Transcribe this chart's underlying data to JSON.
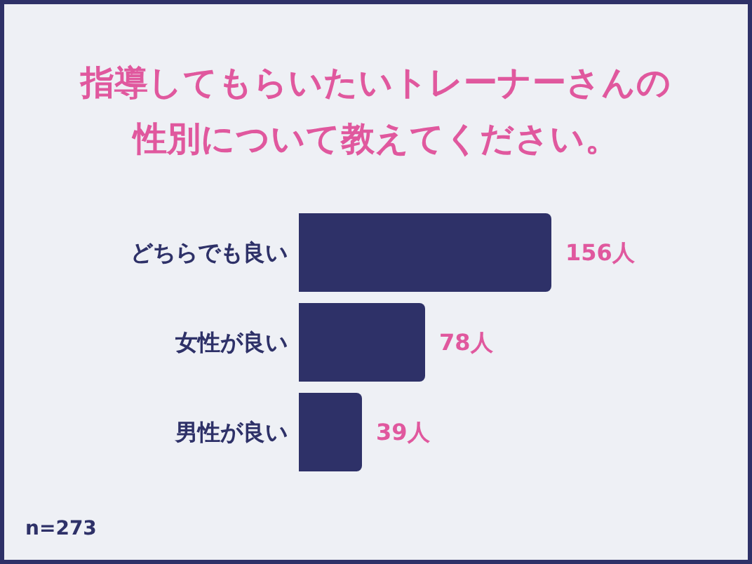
{
  "chart_data": {
    "type": "bar",
    "orientation": "horizontal",
    "title": "指導してもらいたいトレーナーさんの性別について教えてください。",
    "categories": [
      "どちらでも良い",
      "女性が良い",
      "男性が良い"
    ],
    "values": [
      156,
      78,
      39
    ],
    "color": "#2e3168",
    "value_labels": [
      "156人",
      "78人",
      "39人"
    ],
    "annotations": [
      "n=273"
    ]
  }
}
